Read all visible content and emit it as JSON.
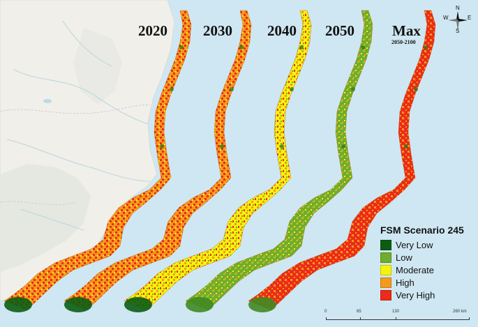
{
  "map": {
    "colors": {
      "sea": "#cfe7f2",
      "land": "#f0efe9",
      "land_dark": "#e2e6de"
    },
    "panels": [
      {
        "year": "2020",
        "dominant": "high"
      },
      {
        "year": "2030",
        "dominant": "high"
      },
      {
        "year": "2040",
        "dominant": "moderate"
      },
      {
        "year": "2050",
        "dominant": "low"
      },
      {
        "year": "Max",
        "subtitle": "2050-2100",
        "dominant": "very_high"
      }
    ]
  },
  "legend": {
    "title": "FSM Scenario 245",
    "items": [
      {
        "label": "Very Low",
        "color": "#0b5d14"
      },
      {
        "label": "Low",
        "color": "#6fad2c"
      },
      {
        "label": "Moderate",
        "color": "#f4f40a"
      },
      {
        "label": "High",
        "color": "#f39a1e"
      },
      {
        "label": "Very High",
        "color": "#ee2a18"
      }
    ]
  },
  "scale_bar": {
    "ticks": [
      "0",
      "65",
      "130",
      "260 km"
    ]
  },
  "compass": {
    "n": "N",
    "s": "S",
    "e": "E",
    "w": "W"
  }
}
